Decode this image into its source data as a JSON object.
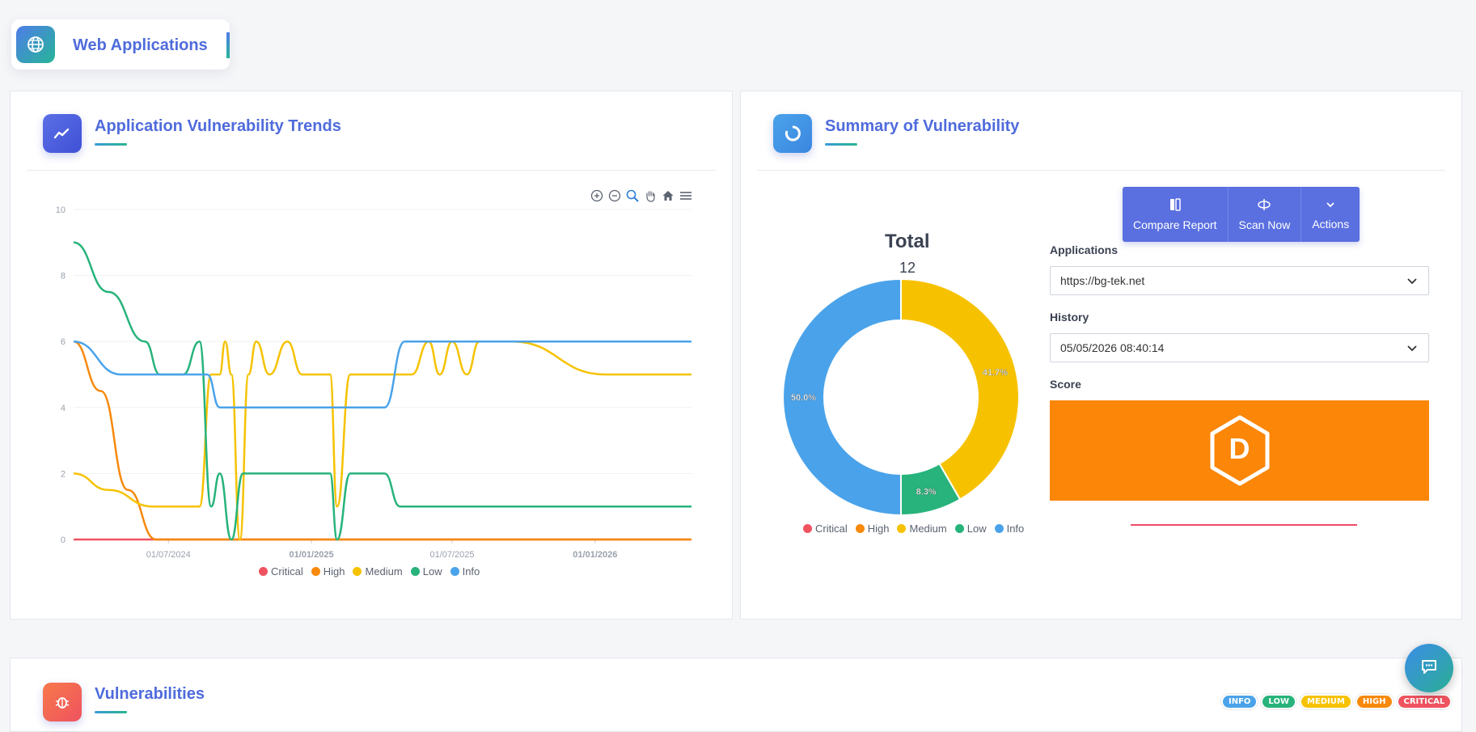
{
  "page_tab": {
    "label": "Web Applications",
    "icon": "globe-icon"
  },
  "trends_card": {
    "title": "Application Vulnerability Trends",
    "icon": "trend-line-icon",
    "tools": [
      "zoom-in-icon",
      "zoom-out-icon",
      "zoom-selection-icon",
      "pan-hand-icon",
      "home-icon",
      "menu-icon"
    ]
  },
  "summary_card": {
    "title": "Summary of Vulnerability",
    "icon": "donut-chart-icon",
    "total_label": "Total",
    "total_value": "12",
    "buttons": [
      {
        "label": "Compare Report",
        "icon": "compare-icon"
      },
      {
        "label": "Scan Now",
        "icon": "scan-icon"
      },
      {
        "label": "Actions",
        "icon": "chevron-down-icon"
      }
    ],
    "applications_label": "Applications",
    "applications_value": "https://bg-tek.net",
    "history_label": "History",
    "history_value": "05/05/2026 08:40:14",
    "score_label": "Score",
    "score_grade": "D",
    "score_color": "#fb8607"
  },
  "vuln_card": {
    "title": "Vulnerabilities",
    "icon": "bug-icon",
    "badges": [
      {
        "label": "INFO",
        "color": "#4aa3ea"
      },
      {
        "label": "LOW",
        "color": "#27b37b"
      },
      {
        "label": "MEDIUM",
        "color": "#f6c200"
      },
      {
        "label": "HIGH",
        "color": "#f7890c"
      },
      {
        "label": "CRITICAL",
        "color": "#ef5360"
      }
    ]
  },
  "legend": [
    {
      "label": "Critical",
      "color": "#ef5360"
    },
    {
      "label": "High",
      "color": "#f7890c"
    },
    {
      "label": "Medium",
      "color": "#f6c200"
    },
    {
      "label": "Low",
      "color": "#27b37b"
    },
    {
      "label": "Info",
      "color": "#4aa3ea"
    }
  ],
  "chart_data": [
    {
      "type": "line",
      "title": "",
      "xlabel": "",
      "ylabel": "",
      "x_tick_labels": [
        "01/07/2024",
        "01/01/2025",
        "01/07/2025",
        "01/01/2026"
      ],
      "y_ticks": [
        0,
        2,
        4,
        6,
        8,
        10
      ],
      "ylim": [
        0,
        10
      ],
      "xlim": [
        "2024-03-01",
        "2026-05-05"
      ],
      "grid": true,
      "legend_position": "bottom",
      "smooth": true,
      "series": [
        {
          "name": "Critical",
          "color": "#ef5360",
          "points": [
            [
              "2024-03-01",
              0
            ],
            [
              "2026-05-05",
              0
            ]
          ]
        },
        {
          "name": "High",
          "color": "#f7890c",
          "points": [
            [
              "2024-03-01",
              6
            ],
            [
              "2024-04-05",
              4.5
            ],
            [
              "2024-05-10",
              1.5
            ],
            [
              "2024-06-15",
              0
            ],
            [
              "2026-05-05",
              0
            ]
          ]
        },
        {
          "name": "Medium",
          "color": "#f6c200",
          "points": [
            [
              "2024-03-01",
              2
            ],
            [
              "2024-04-15",
              1.5
            ],
            [
              "2024-06-10",
              1
            ],
            [
              "2024-08-10",
              1
            ],
            [
              "2024-08-25",
              5
            ],
            [
              "2024-09-05",
              5
            ],
            [
              "2024-09-12",
              6
            ],
            [
              "2024-09-20",
              5
            ],
            [
              "2024-10-01",
              0
            ],
            [
              "2024-10-12",
              5
            ],
            [
              "2024-10-22",
              6
            ],
            [
              "2024-11-08",
              5
            ],
            [
              "2024-12-01",
              6
            ],
            [
              "2024-12-20",
              5
            ],
            [
              "2025-01-05",
              5
            ],
            [
              "2025-01-25",
              5
            ],
            [
              "2025-02-03",
              1
            ],
            [
              "2025-02-20",
              5
            ],
            [
              "2025-04-01",
              5
            ],
            [
              "2025-05-10",
              5
            ],
            [
              "2025-06-01",
              6
            ],
            [
              "2025-06-15",
              5
            ],
            [
              "2025-07-01",
              6
            ],
            [
              "2025-07-20",
              5
            ],
            [
              "2025-08-05",
              6
            ],
            [
              "2025-09-15",
              6
            ],
            [
              "2026-01-15",
              5
            ],
            [
              "2026-05-05",
              5
            ]
          ]
        },
        {
          "name": "Low",
          "color": "#27b37b",
          "points": [
            [
              "2024-03-01",
              9
            ],
            [
              "2024-04-15",
              7.5
            ],
            [
              "2024-06-01",
              6
            ],
            [
              "2024-06-20",
              5
            ],
            [
              "2024-07-20",
              5
            ],
            [
              "2024-08-10",
              6
            ],
            [
              "2024-08-25",
              1
            ],
            [
              "2024-09-05",
              2
            ],
            [
              "2024-09-20",
              0
            ],
            [
              "2024-10-05",
              2
            ],
            [
              "2024-11-01",
              2
            ],
            [
              "2025-01-25",
              2
            ],
            [
              "2025-02-03",
              0
            ],
            [
              "2025-02-20",
              2
            ],
            [
              "2025-04-05",
              2
            ],
            [
              "2025-04-25",
              1
            ],
            [
              "2025-08-01",
              1
            ],
            [
              "2026-05-05",
              1
            ]
          ]
        },
        {
          "name": "Info",
          "color": "#4aa3ea",
          "points": [
            [
              "2024-03-01",
              6
            ],
            [
              "2024-05-01",
              5
            ],
            [
              "2024-06-20",
              5
            ],
            [
              "2024-08-20",
              5
            ],
            [
              "2024-09-05",
              4
            ],
            [
              "2025-01-01",
              4
            ],
            [
              "2025-04-05",
              4
            ],
            [
              "2025-05-01",
              6
            ],
            [
              "2025-09-01",
              6
            ],
            [
              "2026-05-05",
              6
            ]
          ]
        }
      ]
    },
    {
      "type": "pie",
      "title": "Total",
      "subtitle": "12",
      "donut": true,
      "legend_position": "bottom",
      "slices": [
        {
          "name": "Medium",
          "value": 5,
          "label": "41.7%",
          "color": "#f6c200"
        },
        {
          "name": "Low",
          "value": 1,
          "label": "8.3%",
          "color": "#27b37b"
        },
        {
          "name": "Info",
          "value": 6,
          "label": "50.0%",
          "color": "#4aa3ea"
        },
        {
          "name": "Critical",
          "value": 0,
          "color": "#ef5360"
        },
        {
          "name": "High",
          "value": 0,
          "color": "#f7890c"
        }
      ]
    }
  ]
}
